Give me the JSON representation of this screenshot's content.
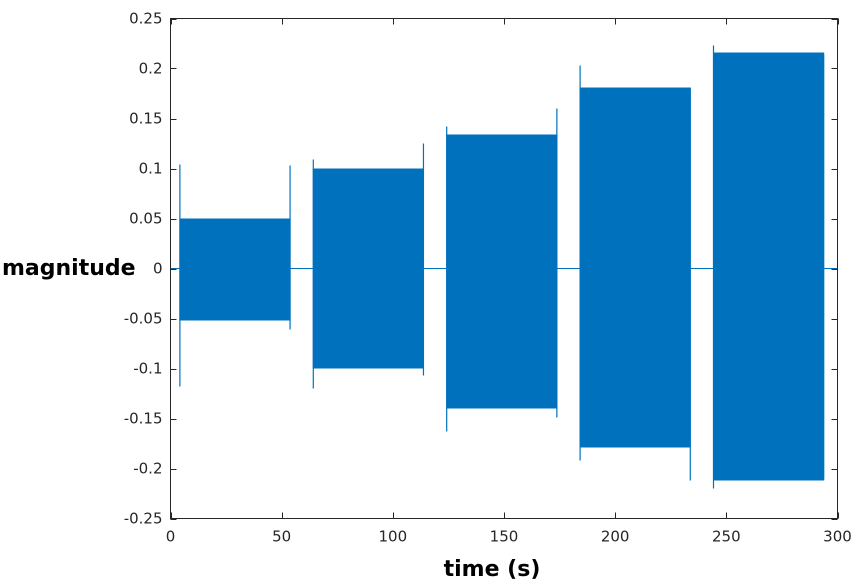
{
  "chart_data": {
    "type": "line",
    "title": "",
    "xlabel": "time (s)",
    "ylabel": "magnitude",
    "xlim": [
      0,
      300
    ],
    "ylim": [
      -0.25,
      0.25
    ],
    "xticks": [
      0,
      50,
      100,
      150,
      200,
      250,
      300
    ],
    "xtick_labels": [
      "0",
      "50",
      "100",
      "150",
      "200",
      "250",
      "300"
    ],
    "yticks": [
      0.25,
      0.2,
      0.15,
      0.1,
      0.05,
      0,
      -0.05,
      -0.1,
      -0.15,
      -0.2,
      -0.25
    ],
    "ytick_labels": [
      "0.25",
      "0.2",
      "0.15",
      "0.1",
      "0.05",
      "0",
      "-0.05",
      "-0.1",
      "-0.15",
      "-0.2",
      "-0.25"
    ],
    "grid": false,
    "series_color": "#0072bd",
    "baseline": 0,
    "bursts": [
      {
        "start": 4,
        "end": 54,
        "upper": 0.05,
        "lower": -0.052,
        "start_peak_high": 0.104,
        "start_peak_low": -0.118,
        "end_peak_high": 0.103,
        "end_peak_low": -0.061
      },
      {
        "start": 64,
        "end": 114,
        "upper": 0.1,
        "lower": -0.1,
        "start_peak_high": 0.109,
        "start_peak_low": -0.12,
        "end_peak_high": 0.125,
        "end_peak_low": -0.107
      },
      {
        "start": 124,
        "end": 174,
        "upper": 0.134,
        "lower": -0.14,
        "start_peak_high": 0.142,
        "start_peak_low": -0.163,
        "end_peak_high": 0.16,
        "end_peak_low": -0.149
      },
      {
        "start": 184,
        "end": 234,
        "upper": 0.181,
        "lower": -0.179,
        "start_peak_high": 0.203,
        "start_peak_low": -0.192,
        "end_peak_high": 0.18,
        "end_peak_low": -0.212
      },
      {
        "start": 244,
        "end": 294,
        "upper": 0.216,
        "lower": -0.212,
        "start_peak_high": 0.223,
        "start_peak_low": -0.22,
        "end_peak_high": 0.214,
        "end_peak_low": -0.211
      }
    ]
  }
}
